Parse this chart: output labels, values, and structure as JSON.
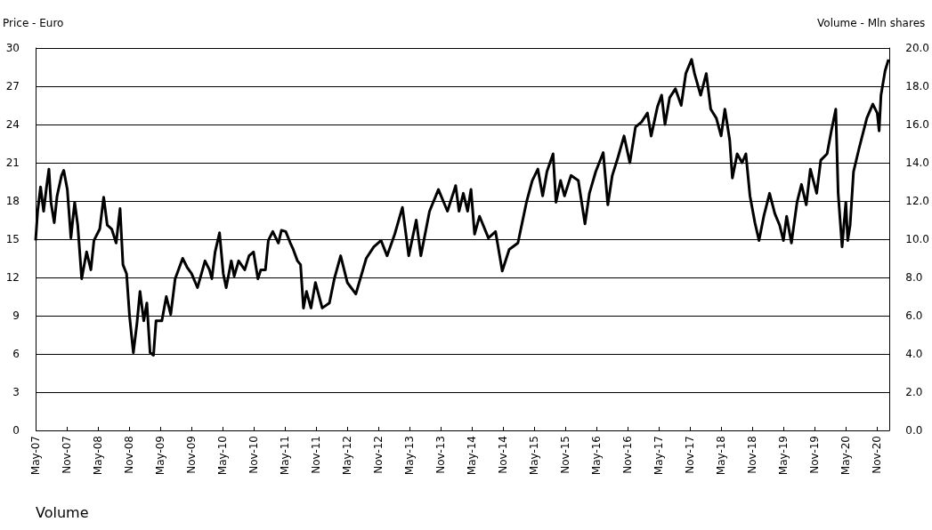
{
  "chart_data": {
    "type": "line",
    "ylabel": "Price - Euro",
    "y2label": "Volume - Mln shares",
    "annotations": [
      "Volume"
    ],
    "xlim": [
      "2007-05-01",
      "2021-01-12"
    ],
    "xticks": [
      {
        "value": "2007-05",
        "label": "May-07"
      },
      {
        "value": "2007-11",
        "label": "Nov-07"
      },
      {
        "value": "2008-05",
        "label": "May-08"
      },
      {
        "value": "2008-11",
        "label": "Nov-08"
      },
      {
        "value": "2009-05",
        "label": "May-09"
      },
      {
        "value": "2009-11",
        "label": "Nov-09"
      },
      {
        "value": "2010-05",
        "label": "May-10"
      },
      {
        "value": "2010-11",
        "label": "Nov-10"
      },
      {
        "value": "2011-05",
        "label": "May-11"
      },
      {
        "value": "2011-11",
        "label": "Nov-11"
      },
      {
        "value": "2012-05",
        "label": "May-12"
      },
      {
        "value": "2012-11",
        "label": "Nov-12"
      },
      {
        "value": "2013-05",
        "label": "May-13"
      },
      {
        "value": "2013-11",
        "label": "Nov-13"
      },
      {
        "value": "2014-05",
        "label": "May-14"
      },
      {
        "value": "2014-11",
        "label": "Nov-14"
      },
      {
        "value": "2015-05",
        "label": "May-15"
      },
      {
        "value": "2015-11",
        "label": "Nov-15"
      },
      {
        "value": "2016-05",
        "label": "May-16"
      },
      {
        "value": "2016-11",
        "label": "Nov-16"
      },
      {
        "value": "2017-05",
        "label": "May-17"
      },
      {
        "value": "2017-11",
        "label": "Nov-17"
      },
      {
        "value": "2018-05",
        "label": "May-18"
      },
      {
        "value": "2018-11",
        "label": "Nov-18"
      },
      {
        "value": "2019-05",
        "label": "May-19"
      },
      {
        "value": "2019-11",
        "label": "Nov-19"
      },
      {
        "value": "2020-05",
        "label": "May-20"
      },
      {
        "value": "2020-11",
        "label": "Nov-20"
      }
    ],
    "ylim": [
      0,
      30
    ],
    "yticks": [
      0,
      3,
      6,
      9,
      12,
      15,
      18,
      21,
      24,
      27,
      30
    ],
    "y2lim": [
      0,
      20
    ],
    "y2ticks": [
      {
        "value": 0,
        "label": "0.0"
      },
      {
        "value": 2,
        "label": "2.0"
      },
      {
        "value": 4,
        "label": "4.0"
      },
      {
        "value": 6,
        "label": "6.0"
      },
      {
        "value": 8,
        "label": "8.0"
      },
      {
        "value": 10,
        "label": "10.0"
      },
      {
        "value": 12,
        "label": "12.0"
      },
      {
        "value": 14,
        "label": "14.0"
      },
      {
        "value": 16,
        "label": "16.0"
      },
      {
        "value": 18,
        "label": "18.0"
      },
      {
        "value": 20,
        "label": "20.0"
      }
    ],
    "grid": "y",
    "series": [
      {
        "color": "#000000",
        "x": [
          "2007-05-01",
          "2007-05-13",
          "2007-05-30",
          "2007-06-17",
          "2007-07-04",
          "2007-07-18",
          "2007-07-30",
          "2007-08-18",
          "2007-09-04",
          "2007-09-30",
          "2007-10-13",
          "2007-11-03",
          "2007-11-24",
          "2007-12-16",
          "2008-01-03",
          "2008-01-26",
          "2008-02-24",
          "2008-03-20",
          "2008-04-07",
          "2008-05-11",
          "2008-06-03",
          "2008-06-24",
          "2008-07-20",
          "2008-08-15",
          "2008-09-07",
          "2008-09-24",
          "2008-10-15",
          "2008-11-02",
          "2008-11-24",
          "2008-12-15",
          "2009-01-02",
          "2009-01-24",
          "2009-02-11",
          "2009-03-02",
          "2009-03-22",
          "2009-04-06",
          "2009-05-10",
          "2009-06-05",
          "2009-07-01",
          "2009-07-27",
          "2009-09-09",
          "2009-10-05",
          "2009-10-31",
          "2009-12-05",
          "2010-01-18",
          "2010-02-13",
          "2010-02-27",
          "2010-03-18",
          "2010-04-13",
          "2010-05-05",
          "2010-05-22",
          "2010-06-21",
          "2010-07-08",
          "2010-08-03",
          "2010-09-08",
          "2010-10-03",
          "2010-10-29",
          "2010-11-24",
          "2010-12-11",
          "2011-01-07",
          "2011-01-24",
          "2011-02-19",
          "2011-03-24",
          "2011-04-11",
          "2011-05-06",
          "2011-06-02",
          "2011-06-19",
          "2011-07-14",
          "2011-08-01",
          "2011-08-18",
          "2011-09-05",
          "2011-10-01",
          "2011-10-27",
          "2011-11-28",
          "2011-12-06",
          "2012-01-17",
          "2012-02-15",
          "2012-03-23",
          "2012-05-01",
          "2012-06-20",
          "2012-08-20",
          "2012-10-03",
          "2012-11-15",
          "2012-12-20",
          "2013-02-03",
          "2013-03-20",
          "2013-04-26",
          "2013-06-09",
          "2013-07-06",
          "2013-08-26",
          "2013-10-17",
          "2013-12-09",
          "2014-01-26",
          "2014-02-15",
          "2014-03-12",
          "2014-04-06",
          "2014-04-26",
          "2014-05-17",
          "2014-06-15",
          "2014-08-06",
          "2014-09-17",
          "2014-10-26",
          "2014-12-06",
          "2015-01-26",
          "2015-02-20",
          "2015-03-17",
          "2015-04-20",
          "2015-05-23",
          "2015-06-20",
          "2015-07-15",
          "2015-08-20",
          "2015-09-06",
          "2015-10-03",
          "2015-10-26",
          "2015-12-03",
          "2016-01-15",
          "2016-02-23",
          "2016-03-20",
          "2016-04-26",
          "2016-06-09",
          "2016-07-06",
          "2016-08-01",
          "2016-09-03",
          "2016-10-09",
          "2016-11-12",
          "2016-12-15",
          "2017-01-20",
          "2017-02-23",
          "2017-03-17",
          "2017-04-23",
          "2017-05-17",
          "2017-06-06",
          "2017-07-03",
          "2017-08-06",
          "2017-09-09",
          "2017-10-06",
          "2017-11-09",
          "2017-11-26",
          "2018-01-01",
          "2018-02-03",
          "2018-03-01",
          "2018-04-03",
          "2018-05-01",
          "2018-05-23",
          "2018-06-20",
          "2018-07-06",
          "2018-08-03",
          "2018-09-01",
          "2018-09-23",
          "2018-10-17",
          "2018-11-15",
          "2018-12-09",
          "2019-01-06",
          "2019-02-09",
          "2019-03-12",
          "2019-04-09",
          "2019-05-01",
          "2019-05-20",
          "2019-06-17",
          "2019-07-20",
          "2019-08-15",
          "2019-09-12",
          "2019-10-06",
          "2019-11-12",
          "2019-12-06",
          "2020-01-12",
          "2020-02-06",
          "2020-03-03",
          "2020-03-17",
          "2020-04-09",
          "2020-05-01",
          "2020-05-12",
          "2020-05-26",
          "2020-06-15",
          "2020-07-17",
          "2020-09-01",
          "2020-10-06",
          "2020-11-01",
          "2020-11-12",
          "2020-11-23",
          "2020-12-17",
          "2021-01-06"
        ],
        "values": [
          14.9,
          17.2,
          19.1,
          17.2,
          19.1,
          20.5,
          17.9,
          16.3,
          18.4,
          20.0,
          20.4,
          18.9,
          15.1,
          17.9,
          16.1,
          11.9,
          14.0,
          12.6,
          14.9,
          15.8,
          18.3,
          16.1,
          15.8,
          14.7,
          17.4,
          13.0,
          12.3,
          8.9,
          6.1,
          8.4,
          10.9,
          8.6,
          10.0,
          6.1,
          5.9,
          8.6,
          8.6,
          10.5,
          9.1,
          11.9,
          13.5,
          12.8,
          12.3,
          11.2,
          13.3,
          12.6,
          11.9,
          14.0,
          15.5,
          12.3,
          11.2,
          13.3,
          12.1,
          13.3,
          12.6,
          13.7,
          14.0,
          11.9,
          12.6,
          12.6,
          14.9,
          15.6,
          14.7,
          15.7,
          15.6,
          14.7,
          14.2,
          13.3,
          13.0,
          9.6,
          10.9,
          9.6,
          11.6,
          10.0,
          9.6,
          10.0,
          11.9,
          13.7,
          11.6,
          10.7,
          13.5,
          14.4,
          14.9,
          13.7,
          15.4,
          17.5,
          13.7,
          16.5,
          13.7,
          17.2,
          18.9,
          17.2,
          19.2,
          17.2,
          18.6,
          17.2,
          18.9,
          15.4,
          16.8,
          15.1,
          15.6,
          12.5,
          14.2,
          14.7,
          16.3,
          17.9,
          19.6,
          20.5,
          18.4,
          20.3,
          21.7,
          17.9,
          19.6,
          18.4,
          20.0,
          19.6,
          16.2,
          18.6,
          20.3,
          21.8,
          17.7,
          20.0,
          21.4,
          23.1,
          21.0,
          23.8,
          24.2,
          24.9,
          23.1,
          25.4,
          26.3,
          24.0,
          26.1,
          26.8,
          25.5,
          28.0,
          29.1,
          28.0,
          26.3,
          28.0,
          25.2,
          24.5,
          23.1,
          25.2,
          22.8,
          19.8,
          21.7,
          21.0,
          21.7,
          18.4,
          16.3,
          14.9,
          16.8,
          18.6,
          17.0,
          16.1,
          14.9,
          16.8,
          14.7,
          17.9,
          19.3,
          17.7,
          20.5,
          18.6,
          21.2,
          21.7,
          23.5,
          25.2,
          18.6,
          14.4,
          17.9,
          14.9,
          16.1,
          20.3,
          22.1,
          24.5,
          25.6,
          24.9,
          23.5,
          26.3,
          28.2,
          29.1
        ]
      }
    ]
  }
}
